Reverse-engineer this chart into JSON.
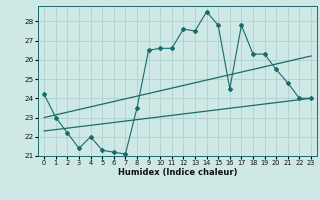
{
  "xlabel": "Humidex (Indice chaleur)",
  "bg_color": "#cde8e5",
  "grid_color": "#b0d0ce",
  "line_color": "#1a6b6b",
  "xlim": [
    -0.5,
    23.5
  ],
  "ylim": [
    21,
    28.8
  ],
  "yticks": [
    21,
    22,
    23,
    24,
    25,
    26,
    27,
    28
  ],
  "xticks": [
    0,
    1,
    2,
    3,
    4,
    5,
    6,
    7,
    8,
    9,
    10,
    11,
    12,
    13,
    14,
    15,
    16,
    17,
    18,
    19,
    20,
    21,
    22,
    23
  ],
  "main_x": [
    0,
    1,
    2,
    3,
    4,
    5,
    6,
    7,
    8,
    9,
    10,
    11,
    12,
    13,
    14,
    15,
    16,
    17,
    18,
    19,
    20,
    21,
    22,
    23
  ],
  "main_y": [
    24.2,
    23.0,
    22.2,
    21.4,
    22.0,
    21.3,
    21.2,
    21.1,
    23.5,
    26.5,
    26.6,
    26.6,
    27.6,
    27.5,
    28.5,
    27.8,
    24.5,
    27.8,
    26.3,
    26.3,
    25.5,
    24.8,
    24.0,
    24.0
  ],
  "trend1_x": [
    0,
    23
  ],
  "trend1_y": [
    23.0,
    26.2
  ],
  "trend2_x": [
    0,
    23
  ],
  "trend2_y": [
    22.3,
    24.0
  ]
}
